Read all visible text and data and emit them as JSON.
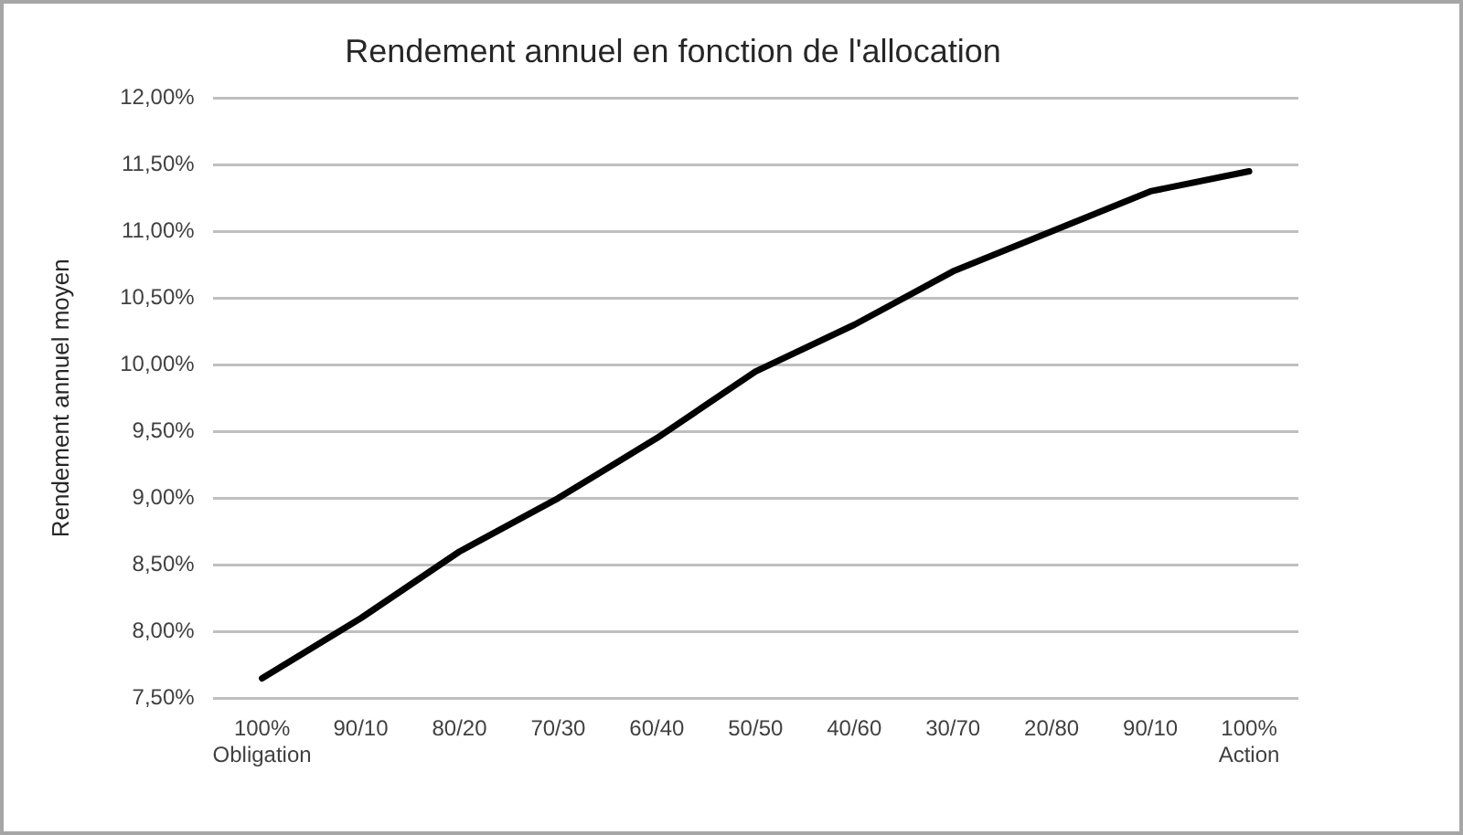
{
  "chart_data": {
    "type": "line",
    "title": "Rendement annuel en fonction de l'allocation",
    "ylabel": "Rendement annuel moyen",
    "categories": [
      "100%\nObligation",
      "90/10",
      "80/20",
      "70/30",
      "60/40",
      "50/50",
      "40/60",
      "30/70",
      "20/80",
      "90/10",
      "100%\nAction"
    ],
    "values": [
      7.65,
      8.1,
      8.6,
      9.0,
      9.45,
      9.95,
      10.3,
      10.7,
      11.0,
      11.3,
      11.45
    ],
    "color": "#000000",
    "ylim": [
      7.5,
      12
    ],
    "yticks": [
      {
        "value": 7.5,
        "label": "7,50%"
      },
      {
        "value": 8,
        "label": "8,00%"
      },
      {
        "value": 8.5,
        "label": "8,50%"
      },
      {
        "value": 9,
        "label": "9,00%"
      },
      {
        "value": 9.5,
        "label": "9,50%"
      },
      {
        "value": 10,
        "label": "10,00%"
      },
      {
        "value": 10.5,
        "label": "10,50%"
      },
      {
        "value": 11,
        "label": "11,00%"
      },
      {
        "value": 11.5,
        "label": "11,50%"
      },
      {
        "value": 12,
        "label": "12,00%"
      }
    ],
    "grid": "y",
    "legend": false,
    "marker": "none",
    "line_style": "solid"
  }
}
